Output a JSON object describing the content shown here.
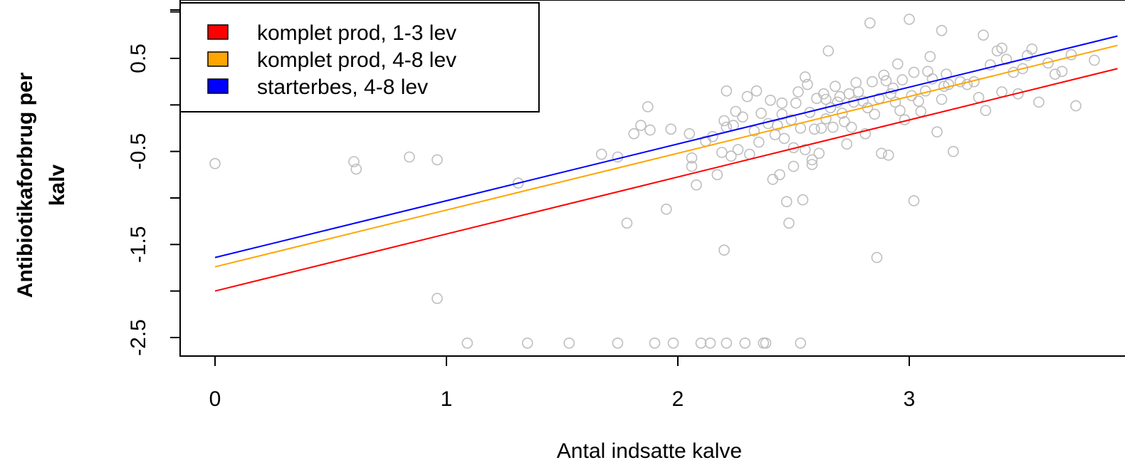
{
  "chart_data": {
    "type": "scatter",
    "xlabel": "Antal indsatte kalve",
    "ylabel_lines": [
      "Antibiotikaforbrug per",
      "kalv"
    ],
    "xlim": [
      -0.15,
      3.9
    ],
    "ylim": [
      -2.9,
      1.05
    ],
    "xticks": [
      0,
      1,
      2,
      3
    ],
    "x_tick_labels": [
      "0",
      "1",
      "2",
      "3"
    ],
    "yticks": [
      -2.5,
      -2.0,
      -1.5,
      -1.0,
      -0.5,
      0.0,
      0.5,
      1.0
    ],
    "y_tick_labels": [
      "-2.5",
      "",
      "-1.5",
      "",
      "-0.5",
      "",
      "0.5",
      ""
    ],
    "legend_position": "top-left",
    "series": [
      {
        "name": "komplet prod, 1-3 lev",
        "color": "#ff0000",
        "line": {
          "x": [
            0,
            3.9
          ],
          "y": [
            -2.0,
            0.39
          ]
        }
      },
      {
        "name": "komplet prod, 4-8 lev",
        "color": "#ffa500",
        "line": {
          "x": [
            0,
            3.9
          ],
          "y": [
            -1.74,
            0.64
          ]
        }
      },
      {
        "name": "starterbes, 4-8 lev",
        "color": "#0000ff",
        "line": {
          "x": [
            0,
            3.9
          ],
          "y": [
            -1.64,
            0.74
          ]
        }
      }
    ],
    "points_color": "#bebebe",
    "points": [
      [
        0.0,
        -0.63
      ],
      [
        0.6,
        -0.61
      ],
      [
        0.61,
        -0.69
      ],
      [
        0.84,
        -0.56
      ],
      [
        0.96,
        -0.59
      ],
      [
        0.96,
        -2.08
      ],
      [
        1.09,
        -2.56
      ],
      [
        1.31,
        -0.84
      ],
      [
        1.35,
        -2.56
      ],
      [
        1.53,
        -2.56
      ],
      [
        1.67,
        -0.53
      ],
      [
        1.74,
        -0.56
      ],
      [
        1.74,
        -2.56
      ],
      [
        1.78,
        -1.27
      ],
      [
        1.81,
        -0.31
      ],
      [
        1.84,
        -0.22
      ],
      [
        1.87,
        -0.02
      ],
      [
        1.88,
        -0.27
      ],
      [
        1.9,
        -2.56
      ],
      [
        1.95,
        -1.12
      ],
      [
        1.97,
        -0.26
      ],
      [
        1.98,
        -2.56
      ],
      [
        2.05,
        -0.31
      ],
      [
        2.06,
        -0.57
      ],
      [
        2.06,
        -0.66
      ],
      [
        2.08,
        -0.86
      ],
      [
        2.1,
        -2.56
      ],
      [
        2.12,
        -0.39
      ],
      [
        2.14,
        -2.56
      ],
      [
        2.15,
        -0.34
      ],
      [
        2.17,
        -0.75
      ],
      [
        2.19,
        -0.51
      ],
      [
        2.2,
        -1.56
      ],
      [
        2.2,
        -0.17
      ],
      [
        2.21,
        -0.24
      ],
      [
        2.21,
        0.15
      ],
      [
        2.21,
        -2.56
      ],
      [
        2.23,
        -0.55
      ],
      [
        2.24,
        -0.22
      ],
      [
        2.25,
        -0.07
      ],
      [
        2.26,
        -0.48
      ],
      [
        2.28,
        -0.13
      ],
      [
        2.29,
        -2.56
      ],
      [
        2.3,
        0.09
      ],
      [
        2.31,
        -0.53
      ],
      [
        2.33,
        -0.28
      ],
      [
        2.34,
        0.15
      ],
      [
        2.35,
        -0.4
      ],
      [
        2.36,
        -0.09
      ],
      [
        2.37,
        -2.56
      ],
      [
        2.38,
        -2.56
      ],
      [
        2.39,
        -0.2
      ],
      [
        2.4,
        0.05
      ],
      [
        2.41,
        -0.8
      ],
      [
        2.42,
        -0.32
      ],
      [
        2.43,
        -0.22
      ],
      [
        2.44,
        -0.75
      ],
      [
        2.45,
        0.02
      ],
      [
        2.45,
        -0.1
      ],
      [
        2.46,
        -0.36
      ],
      [
        2.47,
        -1.04
      ],
      [
        2.48,
        -1.27
      ],
      [
        2.49,
        -0.16
      ],
      [
        2.5,
        -0.66
      ],
      [
        2.5,
        -0.46
      ],
      [
        2.51,
        0.02
      ],
      [
        2.52,
        0.14
      ],
      [
        2.53,
        -0.25
      ],
      [
        2.53,
        -2.56
      ],
      [
        2.54,
        -1.02
      ],
      [
        2.55,
        -0.48
      ],
      [
        2.55,
        0.3
      ],
      [
        2.56,
        0.22
      ],
      [
        2.57,
        -0.08
      ],
      [
        2.58,
        -0.59
      ],
      [
        2.58,
        -0.64
      ],
      [
        2.59,
        -0.26
      ],
      [
        2.6,
        0.07
      ],
      [
        2.61,
        -0.52
      ],
      [
        2.62,
        -0.25
      ],
      [
        2.63,
        0.12
      ],
      [
        2.64,
        0.06
      ],
      [
        2.64,
        -0.15
      ],
      [
        2.65,
        0.58
      ],
      [
        2.66,
        -0.03
      ],
      [
        2.67,
        -0.24
      ],
      [
        2.68,
        0.2
      ],
      [
        2.69,
        0.03
      ],
      [
        2.7,
        0.09
      ],
      [
        2.71,
        -0.09
      ],
      [
        2.72,
        -0.18
      ],
      [
        2.73,
        -0.42
      ],
      [
        2.74,
        0.12
      ],
      [
        2.75,
        -0.24
      ],
      [
        2.76,
        0.03
      ],
      [
        2.77,
        0.24
      ],
      [
        2.78,
        0.14
      ],
      [
        2.8,
        0.04
      ],
      [
        2.81,
        -0.31
      ],
      [
        2.82,
        -0.03
      ],
      [
        2.83,
        0.88
      ],
      [
        2.84,
        0.25
      ],
      [
        2.85,
        -0.1
      ],
      [
        2.86,
        -1.64
      ],
      [
        2.87,
        0.07
      ],
      [
        2.88,
        -0.52
      ],
      [
        2.89,
        0.32
      ],
      [
        2.9,
        0.26
      ],
      [
        2.91,
        -0.54
      ],
      [
        2.92,
        0.12
      ],
      [
        2.93,
        0.18
      ],
      [
        2.94,
        0.03
      ],
      [
        2.95,
        0.44
      ],
      [
        2.96,
        -0.06
      ],
      [
        2.97,
        0.27
      ],
      [
        2.98,
        -0.16
      ],
      [
        3.0,
        0.92
      ],
      [
        3.01,
        0.1
      ],
      [
        3.02,
        0.35
      ],
      [
        3.02,
        -1.03
      ],
      [
        3.04,
        0.04
      ],
      [
        3.05,
        -0.07
      ],
      [
        3.07,
        0.15
      ],
      [
        3.08,
        0.36
      ],
      [
        3.09,
        0.52
      ],
      [
        3.1,
        0.28
      ],
      [
        3.12,
        -0.29
      ],
      [
        3.14,
        0.06
      ],
      [
        3.14,
        0.8
      ],
      [
        3.15,
        0.2
      ],
      [
        3.16,
        0.33
      ],
      [
        3.17,
        0.22
      ],
      [
        3.19,
        -0.5
      ],
      [
        3.22,
        0.25
      ],
      [
        3.25,
        0.22
      ],
      [
        3.28,
        0.25
      ],
      [
        3.3,
        0.08
      ],
      [
        3.32,
        0.75
      ],
      [
        3.33,
        -0.06
      ],
      [
        3.35,
        0.43
      ],
      [
        3.38,
        0.58
      ],
      [
        3.4,
        0.61
      ],
      [
        3.4,
        0.14
      ],
      [
        3.42,
        0.49
      ],
      [
        3.45,
        0.35
      ],
      [
        3.47,
        0.12
      ],
      [
        3.49,
        0.39
      ],
      [
        3.51,
        0.53
      ],
      [
        3.53,
        0.6
      ],
      [
        3.56,
        0.03
      ],
      [
        3.6,
        0.45
      ],
      [
        3.63,
        0.33
      ],
      [
        3.66,
        0.36
      ],
      [
        3.7,
        0.54
      ],
      [
        3.72,
        -0.01
      ],
      [
        3.8,
        0.48
      ]
    ]
  }
}
